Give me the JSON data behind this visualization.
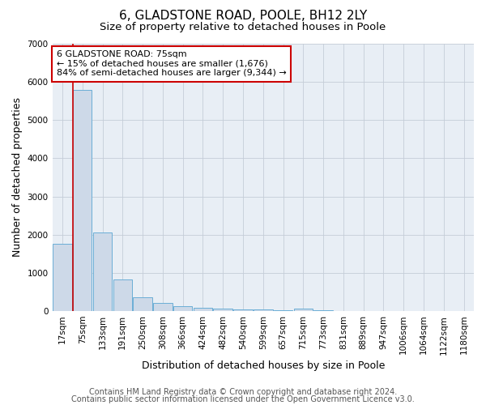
{
  "title1": "6, GLADSTONE ROAD, POOLE, BH12 2LY",
  "title2": "Size of property relative to detached houses in Poole",
  "xlabel": "Distribution of detached houses by size in Poole",
  "ylabel": "Number of detached properties",
  "categories": [
    "17sqm",
    "75sqm",
    "133sqm",
    "191sqm",
    "250sqm",
    "308sqm",
    "366sqm",
    "424sqm",
    "482sqm",
    "540sqm",
    "599sqm",
    "657sqm",
    "715sqm",
    "773sqm",
    "831sqm",
    "889sqm",
    "947sqm",
    "1006sqm",
    "1064sqm",
    "1122sqm",
    "1180sqm"
  ],
  "values": [
    1750,
    5800,
    2050,
    830,
    350,
    220,
    120,
    80,
    60,
    40,
    35,
    30,
    70,
    10,
    5,
    5,
    3,
    3,
    2,
    2,
    2
  ],
  "bar_color": "#cdd9e8",
  "bar_edge_color": "#6baed6",
  "marker_color": "#cc0000",
  "annotation_text": "6 GLADSTONE ROAD: 75sqm\n← 15% of detached houses are smaller (1,676)\n84% of semi-detached houses are larger (9,344) →",
  "annotation_box_color": "#cc0000",
  "ylim": [
    0,
    7000
  ],
  "yticks": [
    0,
    1000,
    2000,
    3000,
    4000,
    5000,
    6000,
    7000
  ],
  "footnote1": "Contains HM Land Registry data © Crown copyright and database right 2024.",
  "footnote2": "Contains public sector information licensed under the Open Government Licence v3.0.",
  "bg_color": "#ffffff",
  "plot_bg_color": "#e8eef5",
  "grid_color": "#c5cdd8",
  "title1_fontsize": 11,
  "title2_fontsize": 9.5,
  "axis_label_fontsize": 9,
  "tick_fontsize": 7.5,
  "annotation_fontsize": 8,
  "footnote_fontsize": 7
}
